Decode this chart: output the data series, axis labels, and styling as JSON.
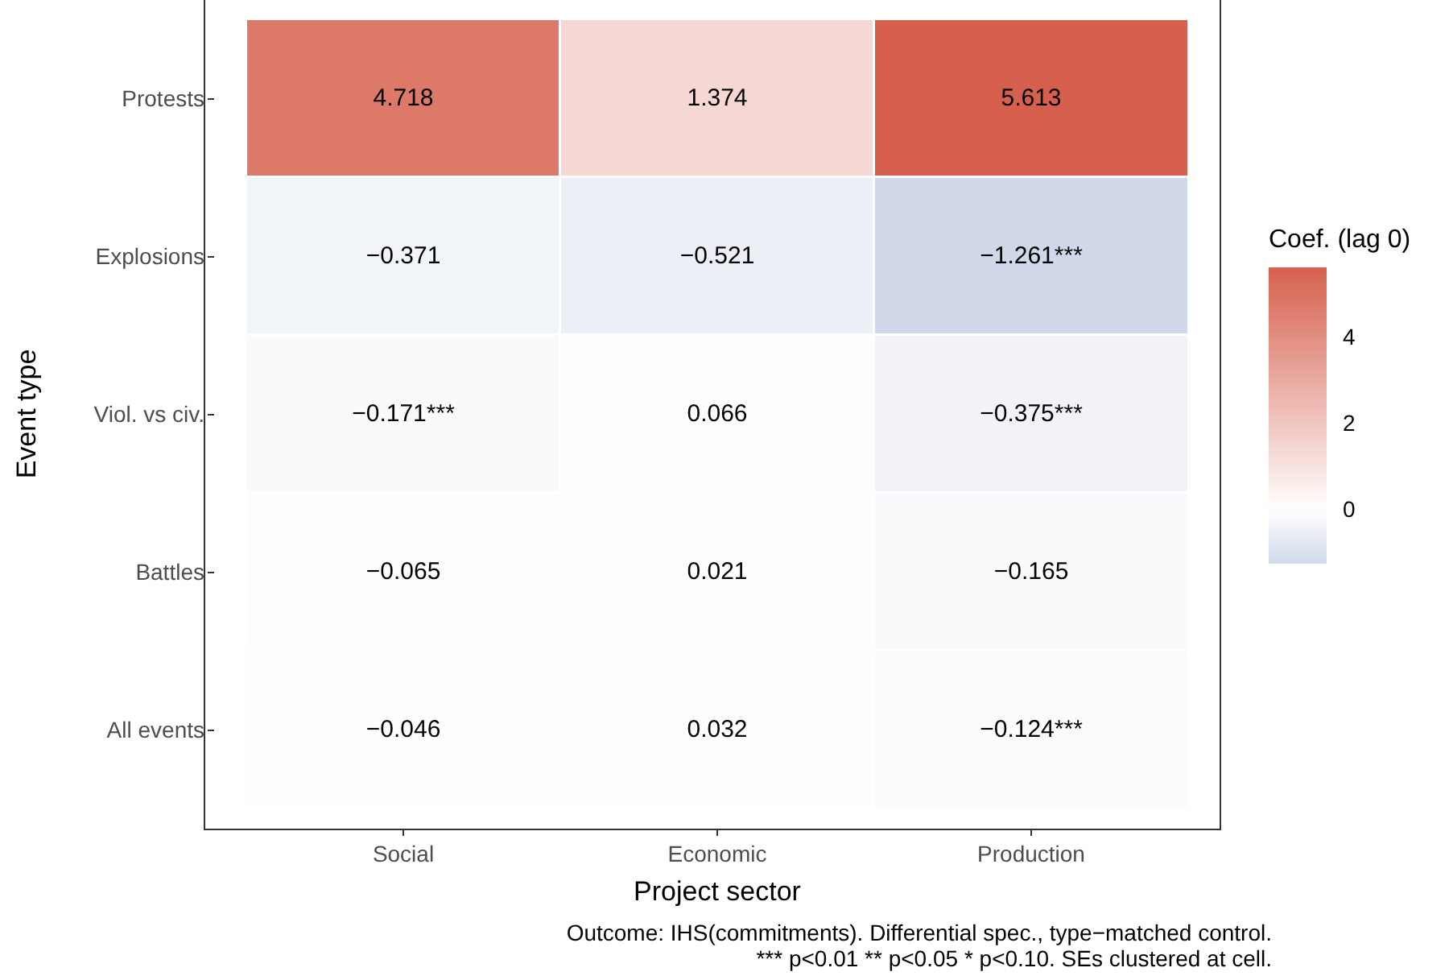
{
  "chart_data": {
    "type": "heatmap",
    "xlabel": "Project sector",
    "ylabel": "Event type",
    "clabel": "Coef. (lag 0)",
    "categories": [
      "Social",
      "Economic",
      "Production"
    ],
    "y_categories": [
      "Protests",
      "Explosions",
      "Viol. vs civ.",
      "Battles",
      "All events"
    ],
    "cells": [
      [
        4.718,
        1.374,
        5.613
      ],
      [
        -0.371,
        -0.521,
        -1.261
      ],
      [
        -0.171,
        0.066,
        -0.375
      ],
      [
        -0.065,
        0.021,
        -0.165
      ],
      [
        -0.046,
        0.032,
        -0.124
      ]
    ],
    "cell_labels": [
      [
        "4.718",
        "1.374",
        "5.613"
      ],
      [
        "−0.371",
        "−0.521",
        "−1.261***"
      ],
      [
        "−0.171***",
        "0.066",
        "−0.375***"
      ],
      [
        "−0.065",
        "0.021",
        "−0.165"
      ],
      [
        "−0.046",
        "0.032",
        "−0.124***"
      ]
    ],
    "colors": [
      "#d1d8ea",
      "#ffffff",
      "#d6604d"
    ],
    "clim": [
      -1.261,
      5.613
    ],
    "cticks": [
      0,
      2,
      4
    ],
    "annotations": [
      "Outcome: IHS(commitments). Differential spec., type−matched control.",
      "*** p<0.01 ** p<0.05 * p<0.10. SEs clustered at cell."
    ]
  }
}
